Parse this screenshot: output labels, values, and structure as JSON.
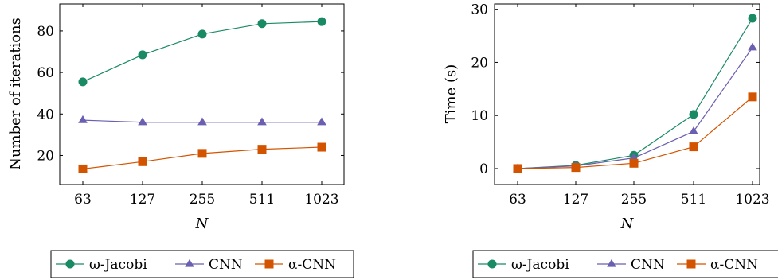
{
  "colors": {
    "jacobi": "#1a8a65",
    "cnn": "#6a5fb0",
    "acnn": "#d35400",
    "axis": "#000000",
    "grid": "#000000"
  },
  "chart_data": [
    {
      "type": "line",
      "categories": [
        "63",
        "127",
        "255",
        "511",
        "1023"
      ],
      "xlabel": "N",
      "ylabel": "Number of iterations",
      "ylim": [
        6,
        93
      ],
      "yticks": [
        20,
        40,
        60,
        80
      ],
      "legend": "bottom",
      "series": [
        {
          "name": "ω-Jacobi",
          "marker": "circle",
          "values": [
            55.5,
            68.5,
            78.5,
            83.5,
            84.5
          ]
        },
        {
          "name": "CNN",
          "marker": "triangle",
          "values": [
            37,
            36,
            36,
            36,
            36
          ]
        },
        {
          "name": "α-CNN",
          "marker": "square",
          "values": [
            13.5,
            17,
            21,
            23,
            24
          ]
        }
      ]
    },
    {
      "type": "line",
      "categories": [
        "63",
        "127",
        "255",
        "511",
        "1023"
      ],
      "xlabel": "N",
      "ylabel": "Time (s)",
      "ylim": [
        -3,
        31
      ],
      "yticks": [
        0,
        10,
        20,
        30
      ],
      "legend": "bottom",
      "series": [
        {
          "name": "ω-Jacobi",
          "marker": "circle",
          "values": [
            0,
            0.6,
            2.5,
            10.2,
            28.3
          ]
        },
        {
          "name": "CNN",
          "marker": "triangle",
          "values": [
            0,
            0.5,
            2.0,
            7.0,
            22.8
          ]
        },
        {
          "name": "α-CNN",
          "marker": "square",
          "values": [
            0,
            0.2,
            1.0,
            4.1,
            13.5
          ]
        }
      ]
    }
  ]
}
